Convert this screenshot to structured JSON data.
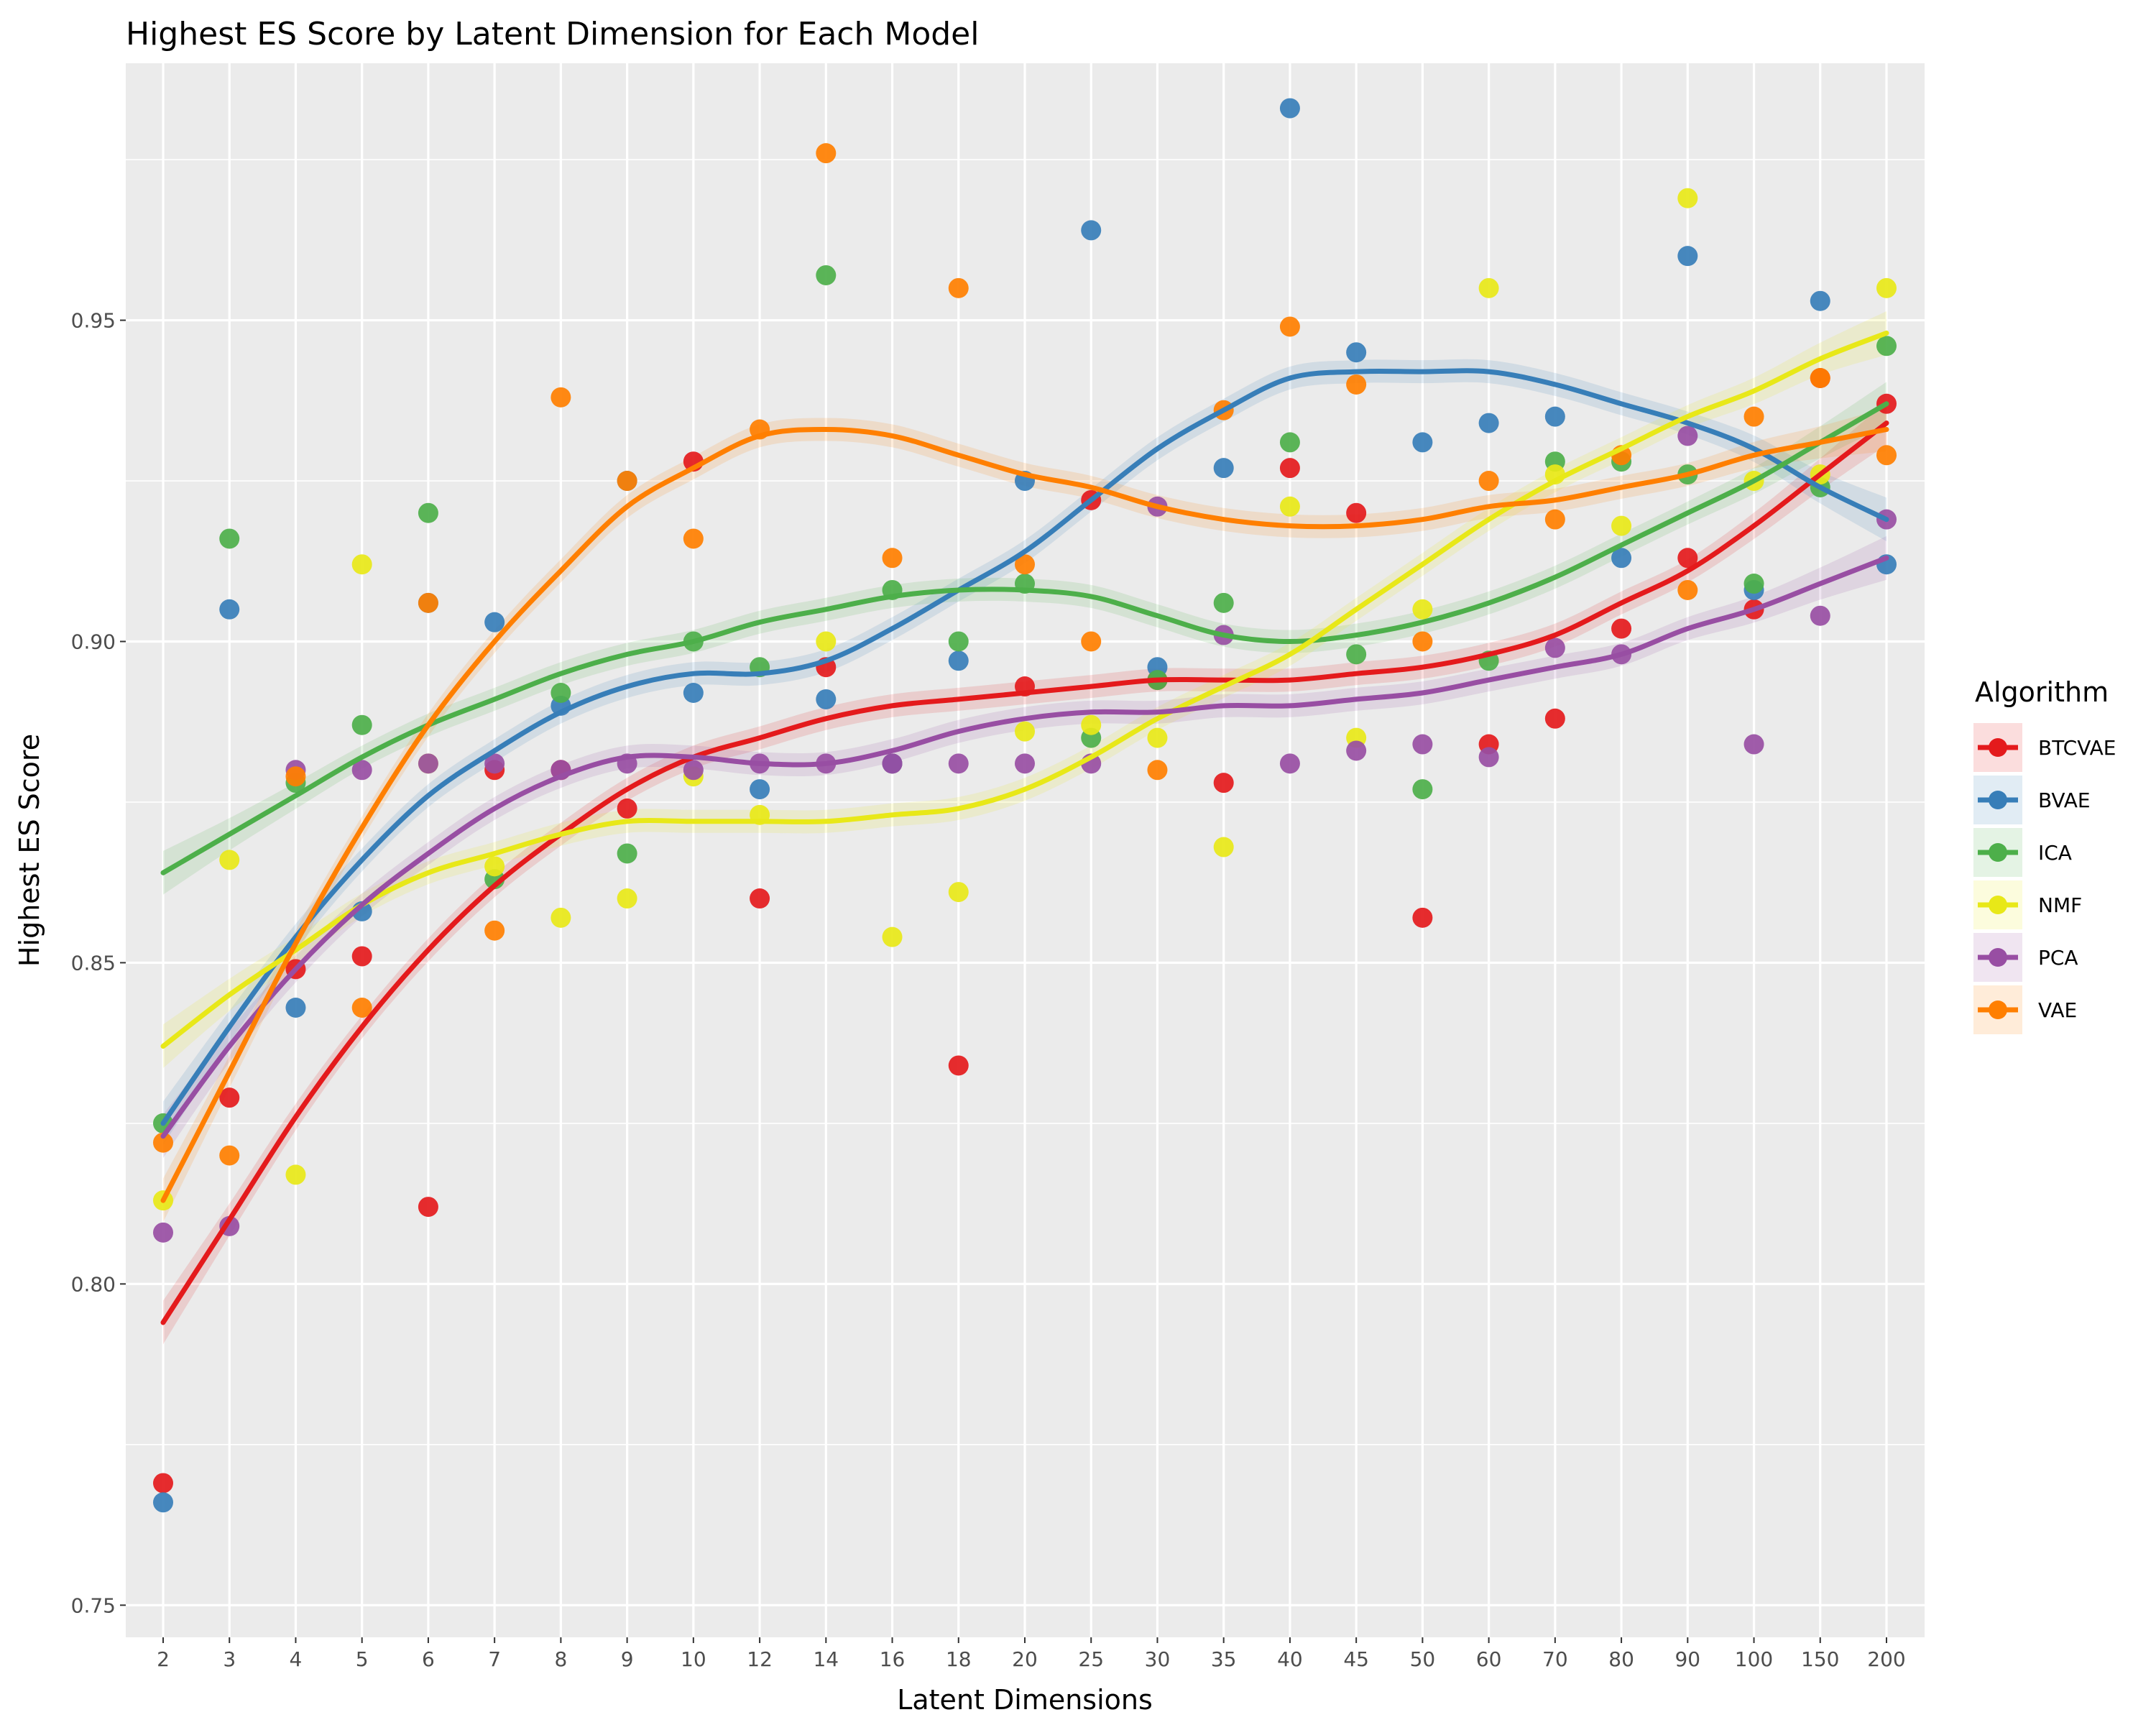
{
  "chart_data": {
    "type": "scatter",
    "title": "Highest ES Score by Latent Dimension for Each Model",
    "xlabel": "Latent Dimensions",
    "ylabel": "Highest ES Score",
    "categories": [
      "2",
      "3",
      "4",
      "5",
      "6",
      "7",
      "8",
      "9",
      "10",
      "12",
      "14",
      "16",
      "18",
      "20",
      "25",
      "30",
      "35",
      "40",
      "45",
      "50",
      "60",
      "70",
      "80",
      "90",
      "100",
      "150",
      "200"
    ],
    "ylim": [
      0.745,
      0.99
    ],
    "yticks": [
      0.75,
      0.8,
      0.85,
      0.9,
      0.95
    ],
    "ytick_labels": [
      "0.75",
      "0.80",
      "0.85",
      "0.90",
      "0.95"
    ],
    "grid": true,
    "legend": {
      "title": "Algorithm",
      "position": "right"
    },
    "series": [
      {
        "name": "BTCVAE",
        "color": "#E41A1C",
        "values": [
          0.769,
          0.829,
          0.849,
          0.851,
          0.812,
          0.88,
          0.88,
          0.874,
          0.928,
          0.86,
          0.896,
          0.881,
          0.834,
          0.893,
          0.922,
          0.894,
          0.878,
          0.927,
          0.92,
          0.857,
          0.884,
          0.888,
          0.902,
          0.913,
          0.905,
          0.941,
          0.937
        ],
        "smooth": [
          0.794,
          0.81,
          0.826,
          0.84,
          0.852,
          0.862,
          0.87,
          0.877,
          0.882,
          0.885,
          0.888,
          0.89,
          0.891,
          0.892,
          0.893,
          0.894,
          0.894,
          0.894,
          0.895,
          0.896,
          0.898,
          0.901,
          0.906,
          0.911,
          0.918,
          0.926,
          0.934
        ]
      },
      {
        "name": "BVAE",
        "color": "#377EB8",
        "values": [
          0.766,
          0.905,
          0.843,
          0.858,
          0.906,
          0.903,
          0.89,
          0.925,
          0.892,
          0.877,
          0.891,
          0.881,
          0.897,
          0.925,
          0.964,
          0.896,
          0.927,
          0.983,
          0.945,
          0.931,
          0.934,
          0.935,
          0.913,
          0.96,
          0.908,
          0.953,
          0.912
        ],
        "smooth": [
          0.825,
          0.84,
          0.854,
          0.866,
          0.876,
          0.883,
          0.889,
          0.893,
          0.895,
          0.895,
          0.897,
          0.902,
          0.908,
          0.914,
          0.922,
          0.93,
          0.936,
          0.941,
          0.942,
          0.942,
          0.942,
          0.94,
          0.937,
          0.934,
          0.93,
          0.924,
          0.919
        ]
      },
      {
        "name": "ICA",
        "color": "#4DAF4A",
        "values": [
          0.825,
          0.916,
          0.878,
          0.887,
          0.92,
          0.863,
          0.892,
          0.867,
          0.9,
          0.896,
          0.957,
          0.908,
          0.9,
          0.909,
          0.885,
          0.894,
          0.906,
          0.931,
          0.898,
          0.877,
          0.897,
          0.928,
          0.928,
          0.926,
          0.909,
          0.924,
          0.946
        ],
        "smooth": [
          0.864,
          0.87,
          0.876,
          0.882,
          0.887,
          0.891,
          0.895,
          0.898,
          0.9,
          0.903,
          0.905,
          0.907,
          0.908,
          0.908,
          0.907,
          0.904,
          0.901,
          0.9,
          0.901,
          0.903,
          0.906,
          0.91,
          0.915,
          0.92,
          0.925,
          0.931,
          0.937
        ]
      },
      {
        "name": "NMF",
        "color": "#E8E818",
        "values": [
          0.813,
          0.866,
          0.817,
          0.912,
          0.881,
          0.865,
          0.857,
          0.86,
          0.879,
          0.873,
          0.9,
          0.854,
          0.861,
          0.886,
          0.887,
          0.885,
          0.868,
          0.921,
          0.885,
          0.905,
          0.955,
          0.926,
          0.918,
          0.969,
          0.925,
          0.926,
          0.955
        ],
        "smooth": [
          0.837,
          0.845,
          0.852,
          0.859,
          0.864,
          0.867,
          0.87,
          0.872,
          0.872,
          0.872,
          0.872,
          0.873,
          0.874,
          0.877,
          0.882,
          0.888,
          0.893,
          0.898,
          0.905,
          0.912,
          0.919,
          0.925,
          0.93,
          0.935,
          0.939,
          0.944,
          0.948
        ]
      },
      {
        "name": "PCA",
        "color": "#984EA3",
        "values": [
          0.808,
          0.809,
          0.88,
          0.88,
          0.881,
          0.881,
          0.88,
          0.881,
          0.88,
          0.881,
          0.881,
          0.881,
          0.881,
          0.881,
          0.881,
          0.921,
          0.901,
          0.881,
          0.883,
          0.884,
          0.882,
          0.899,
          0.898,
          0.932,
          0.884,
          0.904,
          0.919
        ],
        "smooth": [
          0.823,
          0.837,
          0.849,
          0.859,
          0.867,
          0.874,
          0.879,
          0.882,
          0.882,
          0.881,
          0.881,
          0.883,
          0.886,
          0.888,
          0.889,
          0.889,
          0.89,
          0.89,
          0.891,
          0.892,
          0.894,
          0.896,
          0.898,
          0.902,
          0.905,
          0.909,
          0.913
        ]
      },
      {
        "name": "VAE",
        "color": "#FF7F00",
        "values": [
          0.822,
          0.82,
          0.879,
          0.843,
          0.906,
          0.855,
          0.938,
          0.925,
          0.916,
          0.933,
          0.976,
          0.913,
          0.955,
          0.912,
          0.9,
          0.88,
          0.936,
          0.949,
          0.94,
          0.9,
          0.925,
          0.919,
          0.929,
          0.908,
          0.935,
          0.941,
          0.929
        ],
        "smooth": [
          0.813,
          0.833,
          0.853,
          0.871,
          0.887,
          0.9,
          0.911,
          0.921,
          0.927,
          0.932,
          0.933,
          0.932,
          0.929,
          0.926,
          0.924,
          0.921,
          0.919,
          0.918,
          0.918,
          0.919,
          0.921,
          0.922,
          0.924,
          0.926,
          0.929,
          0.931,
          0.933
        ]
      }
    ]
  }
}
